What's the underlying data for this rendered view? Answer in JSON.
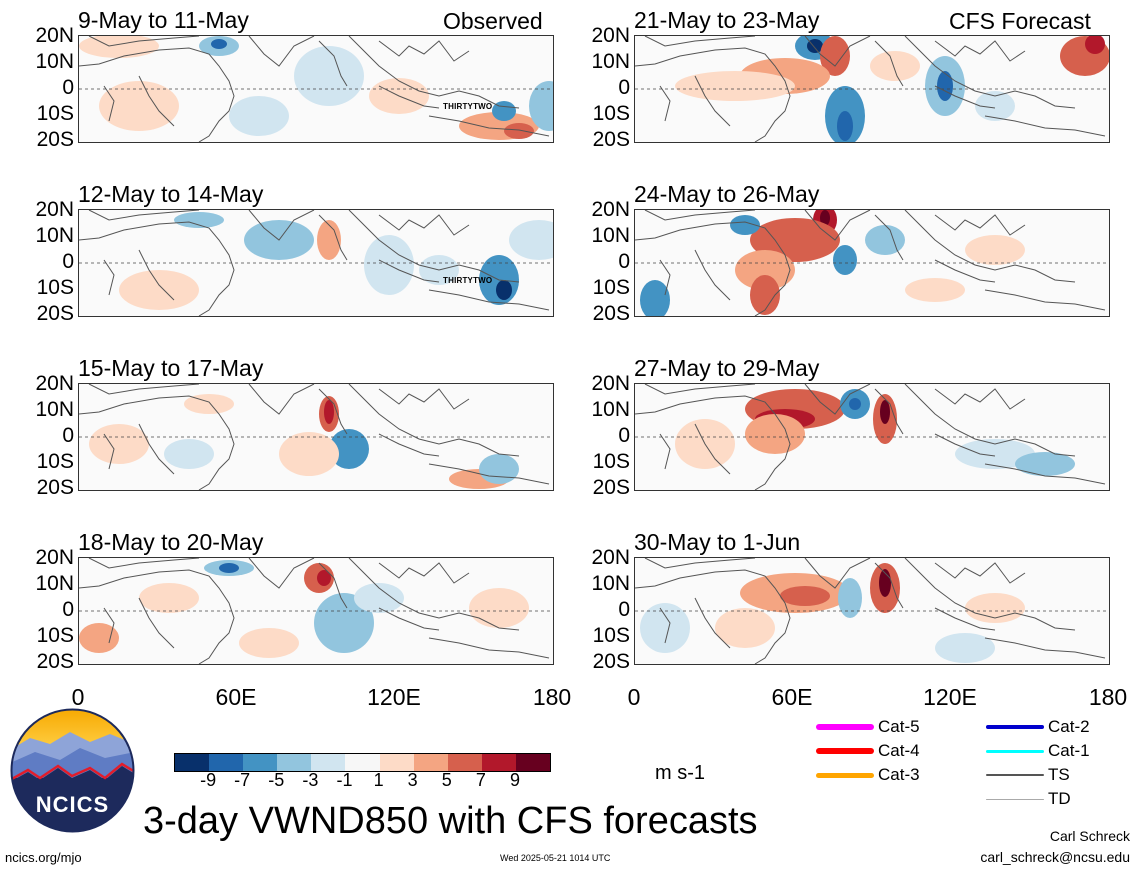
{
  "header": {
    "observed_label": "Observed",
    "forecast_label": "CFS Forecast"
  },
  "panels_left": [
    {
      "title": "9-May to 11-May",
      "storm_label": "THIRTYTWO"
    },
    {
      "title": "12-May to 14-May",
      "storm_label": "THIRTYTWO"
    },
    {
      "title": "15-May to 17-May",
      "storm_label": ""
    },
    {
      "title": "18-May to 20-May",
      "storm_label": ""
    }
  ],
  "panels_right": [
    {
      "title": "21-May to 23-May"
    },
    {
      "title": "24-May to 26-May"
    },
    {
      "title": "27-May to 29-May"
    },
    {
      "title": "30-May to 1-Jun"
    }
  ],
  "lat_labels": [
    "20N",
    "10N",
    "0",
    "10S",
    "20S"
  ],
  "lon_labels": [
    "0",
    "60E",
    "120E",
    "180"
  ],
  "colorbar": {
    "colors": [
      "#08306b",
      "#2166ac",
      "#4393c3",
      "#92c5de",
      "#d1e5f0",
      "#f7f7f7",
      "#fddbc7",
      "#f4a582",
      "#d6604d",
      "#b2182b",
      "#67001f"
    ],
    "ticks": [
      "-9",
      "-7",
      "-5",
      "-3",
      "-1",
      "1",
      "3",
      "5",
      "7",
      "9"
    ],
    "units": "m s-1"
  },
  "storm_legend": [
    {
      "label": "Cat-5",
      "color": "#ff00ff"
    },
    {
      "label": "Cat-4",
      "color": "#ff0000"
    },
    {
      "label": "Cat-3",
      "color": "#ffa500"
    },
    {
      "label": "Cat-2",
      "color": "#0000cd"
    },
    {
      "label": "Cat-1",
      "color": "#00ffff"
    },
    {
      "label": "TS",
      "color": "#555555"
    },
    {
      "label": "TD",
      "color": "#aaaaaa"
    }
  ],
  "logo": {
    "text": "NCICS"
  },
  "footer": {
    "main_title": "3-day VWND850 with CFS forecasts",
    "url": "ncics.org/mjo",
    "timestamp": "Wed 2025-05-21 1014 UTC",
    "author": "Carl Schreck",
    "email": "carl_schreck@ncsu.edu"
  }
}
